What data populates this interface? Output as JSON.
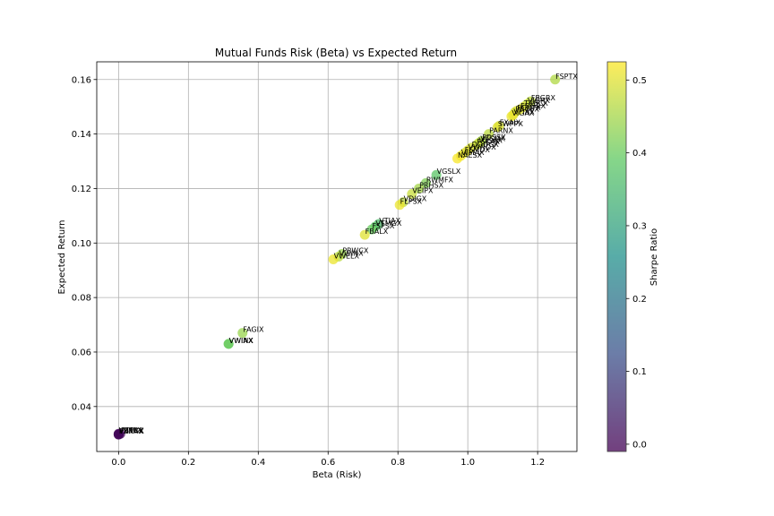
{
  "chart_data": {
    "type": "scatter",
    "title": "Mutual Funds Risk (Beta) vs Expected Return",
    "xlabel": "Beta (Risk)",
    "ylabel": "Expected Return",
    "xlim": [
      -0.0625,
      1.3125
    ],
    "ylim": [
      0.0235,
      0.1665
    ],
    "xticks": [
      "0.0",
      "0.2",
      "0.4",
      "0.6",
      "0.8",
      "1.0",
      "1.2"
    ],
    "yticks": [
      "0.04",
      "0.06",
      "0.08",
      "0.10",
      "0.12",
      "0.14",
      "0.16"
    ],
    "grid": true,
    "colorbar": {
      "label": "Sharpe Ratio",
      "range": [
        -0.01,
        0.525
      ],
      "ticks": [
        "0.0",
        "0.1",
        "0.2",
        "0.3",
        "0.4",
        "0.5"
      ]
    },
    "points": [
      {
        "label": "FSPTX",
        "x": 1.25,
        "y": 0.16,
        "c": 0.46
      },
      {
        "label": "FBGRX",
        "x": 1.18,
        "y": 0.152,
        "c": 0.47
      },
      {
        "label": "VIGRX",
        "x": 1.17,
        "y": 0.151,
        "c": 0.48
      },
      {
        "label": "TRBCX",
        "x": 1.16,
        "y": 0.15,
        "c": 0.49
      },
      {
        "label": "FDGRX",
        "x": 1.15,
        "y": 0.149,
        "c": 0.5
      },
      {
        "label": "FCNTX",
        "x": 1.14,
        "y": 0.1485,
        "c": 0.5
      },
      {
        "label": "PRGFX",
        "x": 1.135,
        "y": 0.148,
        "c": 0.49
      },
      {
        "label": "VFIAX",
        "x": 1.13,
        "y": 0.147,
        "c": 0.5
      },
      {
        "label": "VIGAX",
        "x": 1.125,
        "y": 0.1465,
        "c": 0.51
      },
      {
        "label": "FXAIX",
        "x": 1.09,
        "y": 0.143,
        "c": 0.49
      },
      {
        "label": "SWPPX",
        "x": 1.085,
        "y": 0.1425,
        "c": 0.5
      },
      {
        "label": "PARNX",
        "x": 1.06,
        "y": 0.14,
        "c": 0.47
      },
      {
        "label": "FDSSX",
        "x": 1.04,
        "y": 0.1375,
        "c": 0.45
      },
      {
        "label": "VTSMX",
        "x": 1.035,
        "y": 0.137,
        "c": 0.46
      },
      {
        "label": "VTSAX",
        "x": 1.03,
        "y": 0.1365,
        "c": 0.47
      },
      {
        "label": "FSKAX",
        "x": 1.025,
        "y": 0.136,
        "c": 0.48
      },
      {
        "label": "DODGX",
        "x": 1.01,
        "y": 0.135,
        "c": 0.49
      },
      {
        "label": "VWNDX",
        "x": 1.0,
        "y": 0.134,
        "c": 0.5
      },
      {
        "label": "FSMDX",
        "x": 0.99,
        "y": 0.133,
        "c": 0.5
      },
      {
        "label": "VIMAX",
        "x": 0.98,
        "y": 0.132,
        "c": 0.51
      },
      {
        "label": "NAESX",
        "x": 0.97,
        "y": 0.131,
        "c": 0.52
      },
      {
        "label": "VGSLX",
        "x": 0.91,
        "y": 0.125,
        "c": 0.38
      },
      {
        "label": "RWMFX",
        "x": 0.88,
        "y": 0.122,
        "c": 0.42
      },
      {
        "label": "PRHSX",
        "x": 0.86,
        "y": 0.12,
        "c": 0.45
      },
      {
        "label": "VEIPX",
        "x": 0.84,
        "y": 0.118,
        "c": 0.48
      },
      {
        "label": "VDIGX",
        "x": 0.815,
        "y": 0.115,
        "c": 0.47
      },
      {
        "label": "FLPSX",
        "x": 0.805,
        "y": 0.114,
        "c": 0.51
      },
      {
        "label": "VTIAX",
        "x": 0.745,
        "y": 0.107,
        "c": 0.36
      },
      {
        "label": "VTMGX",
        "x": 0.735,
        "y": 0.106,
        "c": 0.38
      },
      {
        "label": "FSPSX",
        "x": 0.725,
        "y": 0.105,
        "c": 0.4
      },
      {
        "label": "FBALX",
        "x": 0.705,
        "y": 0.103,
        "c": 0.5
      },
      {
        "label": "PRWCX",
        "x": 0.64,
        "y": 0.096,
        "c": 0.44
      },
      {
        "label": "VWINX",
        "x": 0.63,
        "y": 0.095,
        "c": 0.47
      },
      {
        "label": "VWELX",
        "x": 0.615,
        "y": 0.094,
        "c": 0.51
      },
      {
        "label": "FAGIX",
        "x": 0.355,
        "y": 0.067,
        "c": 0.44
      },
      {
        "label": "VWIAX",
        "x": 0.315,
        "y": 0.063,
        "c": 0.4
      },
      {
        "label": "VWINX",
        "x": 0.315,
        "y": 0.063,
        "c": 0.4
      },
      {
        "label": "PTTRX",
        "x": 0.005,
        "y": 0.03,
        "c": 0.0
      },
      {
        "label": "VBTLX",
        "x": 0.0,
        "y": 0.03,
        "c": 0.0
      },
      {
        "label": "FXNAX",
        "x": 0.0,
        "y": 0.0298,
        "c": 0.0
      },
      {
        "label": "VBMFX",
        "x": 0.0,
        "y": 0.0297,
        "c": 0.0
      }
    ]
  }
}
